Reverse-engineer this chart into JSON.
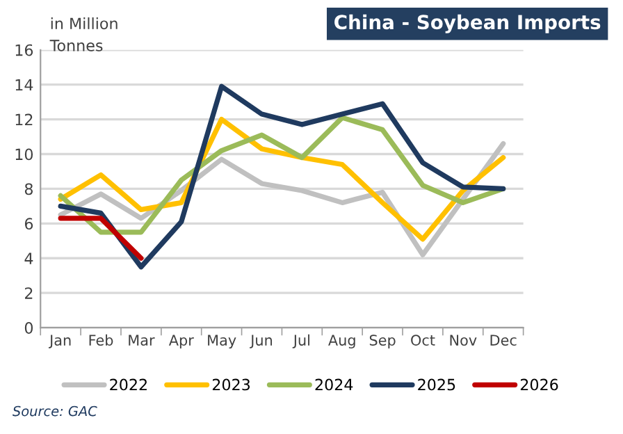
{
  "chart_data": {
    "type": "line",
    "title": "China - Soybean Imports",
    "ylabel": "in Million\nTonnes",
    "annotations": [
      "Source: GAC"
    ],
    "categories": [
      "Jan",
      "Feb",
      "Mar",
      "Apr",
      "May",
      "Jun",
      "Jul",
      "Aug",
      "Sep",
      "Oct",
      "Nov",
      "Dec"
    ],
    "series": [
      {
        "name": "2022",
        "color": "#c0c0c0",
        "values": [
          6.5,
          7.7,
          6.3,
          7.9,
          9.7,
          8.3,
          7.9,
          7.2,
          7.8,
          4.2,
          7.4,
          10.6
        ]
      },
      {
        "name": "2023",
        "color": "#ffc000",
        "values": [
          7.4,
          8.8,
          6.8,
          7.2,
          12.0,
          10.3,
          9.8,
          9.4,
          7.2,
          5.1,
          7.9,
          9.8
        ]
      },
      {
        "name": "2024",
        "color": "#9bbb59",
        "values": [
          7.6,
          5.5,
          5.5,
          8.5,
          10.2,
          11.1,
          9.8,
          12.1,
          11.4,
          8.2,
          7.2,
          8.0
        ]
      },
      {
        "name": "2025",
        "color": "#1f3a5f",
        "values": [
          7.0,
          6.6,
          3.5,
          6.1,
          13.9,
          12.3,
          11.7,
          12.3,
          12.9,
          9.5,
          8.1,
          8.0
        ]
      },
      {
        "name": "2026",
        "color": "#c00000",
        "values": [
          6.3,
          6.3,
          4.0,
          null,
          null,
          null,
          null,
          null,
          null,
          null,
          null,
          null
        ]
      }
    ],
    "ylim": [
      0,
      16
    ],
    "yticks": [
      0,
      2,
      4,
      6,
      8,
      10,
      12,
      14,
      16
    ],
    "grid": "y",
    "legend": "bottom",
    "marker": "none",
    "line_style": "solid"
  }
}
